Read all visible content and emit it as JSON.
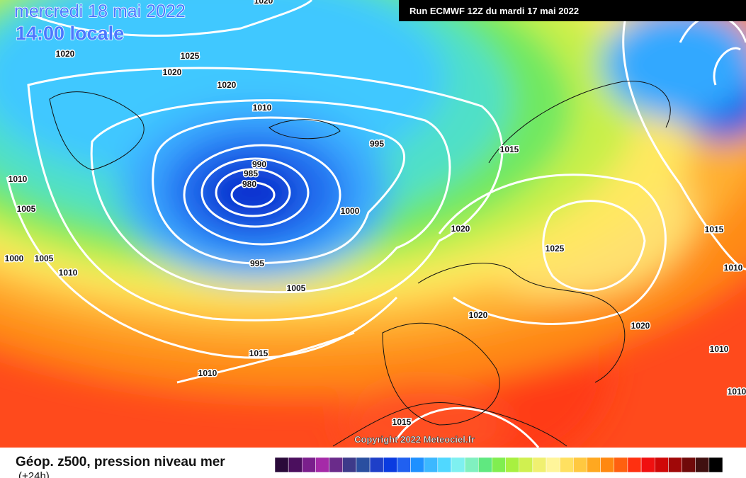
{
  "header": {
    "date": "mercredi 18 mai 2022",
    "time": "14:00 locale",
    "run": "Run ECMWF 12Z du mardi 17 mai 2022"
  },
  "map": {
    "copyright": "Copyright 2022 Meteociel.fr",
    "isobar_labels": [
      "1020",
      "1020",
      "1025",
      "1020",
      "1020",
      "1010",
      "995",
      "1015",
      "990",
      "985",
      "980",
      "1010",
      "1005",
      "1000",
      "1020",
      "1025",
      "1015",
      "1000",
      "1005",
      "995",
      "1010",
      "1010",
      "1005",
      "1020",
      "1020",
      "1010",
      "1015",
      "1010",
      "1015",
      "1010"
    ]
  },
  "legend": {
    "title": "Géop. z500, pression niveau mer",
    "subtitle": "(+24h)",
    "scale_colors": [
      "#2a0a3a",
      "#4b0f5e",
      "#7a1f8c",
      "#a52aa8",
      "#6a2b8a",
      "#3d3a8a",
      "#2a4fa0",
      "#1e3fc8",
      "#0a3be0",
      "#2060f0",
      "#1e90ff",
      "#3cb8ff",
      "#50d8ff",
      "#7ef0f0",
      "#80f0c0",
      "#60e880",
      "#80ee50",
      "#a8f040",
      "#d0f050",
      "#f0f070",
      "#fff59a",
      "#ffe060",
      "#ffc840",
      "#ffa820",
      "#ff8810",
      "#ff6010",
      "#ff3010",
      "#f01010",
      "#d00808",
      "#a00808",
      "#700a0a",
      "#401010",
      "#000000"
    ]
  }
}
